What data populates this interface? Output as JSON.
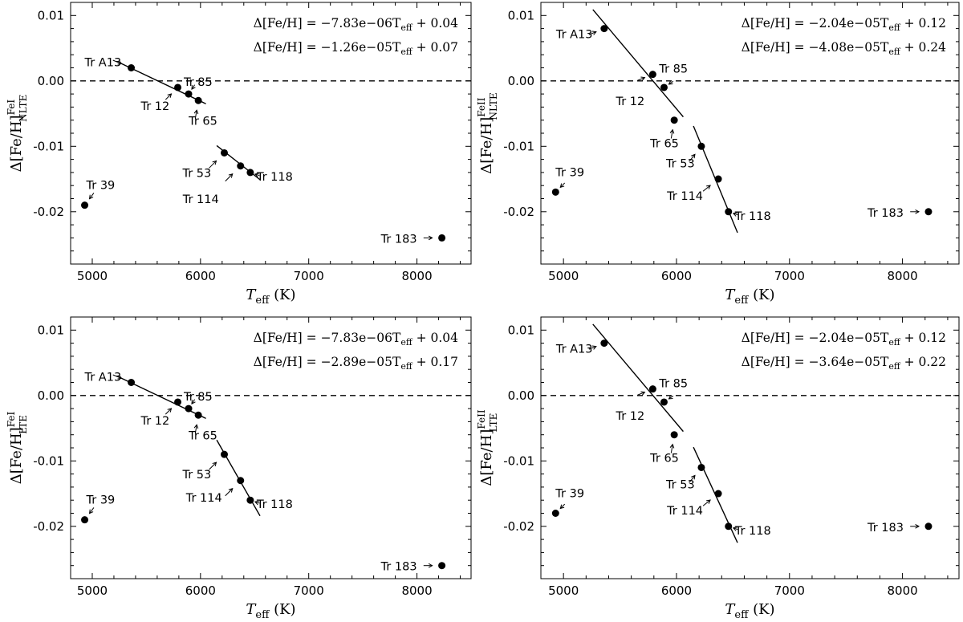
{
  "chart_data": [
    {
      "type": "scatter",
      "ylabel": "Δ[Fe/H] NLTE (Fe I)",
      "ylabel_main": "Δ[Fe/H]",
      "ylabel_sup": "FeI",
      "ylabel_sub": "NLTE",
      "xlabel_main": "T",
      "xlabel_sub": "eff",
      "xlabel_unit": "(K)",
      "xlim": [
        4800,
        8500
      ],
      "ylim": [
        -0.028,
        0.012
      ],
      "xticks": [
        5000,
        6000,
        7000,
        8000
      ],
      "yticks": [
        0.01,
        0.0,
        -0.01,
        -0.02
      ],
      "ytick_labels": [
        "0.01",
        "0.00",
        "-0.01",
        "-0.02"
      ],
      "equations": [
        "Δ[Fe/H] = −7.83e−06T_eff + 0.04",
        "Δ[Fe/H] = −1.26e−05T_eff + 0.07"
      ],
      "points": [
        {
          "label": "Tr A13",
          "x": 5360,
          "y": 0.002
        },
        {
          "label": "Tr 12",
          "x": 5790,
          "y": -0.001
        },
        {
          "label": "Tr 85",
          "x": 5890,
          "y": -0.002
        },
        {
          "label": "Tr 65",
          "x": 5980,
          "y": -0.003
        },
        {
          "label": "Tr 53",
          "x": 6220,
          "y": -0.011
        },
        {
          "label": "Tr 114",
          "x": 6370,
          "y": -0.013
        },
        {
          "label": "Tr 118",
          "x": 6460,
          "y": -0.014
        },
        {
          "label": "Tr 39",
          "x": 4930,
          "y": -0.019
        },
        {
          "label": "Tr 183",
          "x": 8230,
          "y": -0.024
        }
      ],
      "fits": [
        {
          "x": [
            5250,
            6050
          ],
          "y": [
            0.0028,
            -0.0035
          ]
        },
        {
          "x": [
            6150,
            6550
          ],
          "y": [
            -0.0099,
            -0.0151
          ]
        }
      ]
    },
    {
      "type": "scatter",
      "ylabel": "Δ[Fe/H] NLTE (Fe II)",
      "ylabel_main": "Δ[Fe/H]",
      "ylabel_sup": "FeII",
      "ylabel_sub": "NLTE",
      "xlabel_main": "T",
      "xlabel_sub": "eff",
      "xlabel_unit": "(K)",
      "xlim": [
        4800,
        8500
      ],
      "ylim": [
        -0.028,
        0.012
      ],
      "xticks": [
        5000,
        6000,
        7000,
        8000
      ],
      "yticks": [
        0.01,
        0.0,
        -0.01,
        -0.02
      ],
      "ytick_labels": [
        "0.01",
        "0.00",
        "-0.01",
        "-0.02"
      ],
      "equations": [
        "Δ[Fe/H] = −2.04e−05T_eff + 0.12",
        "Δ[Fe/H] = −4.08e−05T_eff + 0.24"
      ],
      "points": [
        {
          "label": "Tr A13",
          "x": 5360,
          "y": 0.008
        },
        {
          "label": "Tr 85",
          "x": 5790,
          "y": 0.001
        },
        {
          "label": "Tr 12",
          "x": 5890,
          "y": -0.001
        },
        {
          "label": "Tr 65",
          "x": 5980,
          "y": -0.006
        },
        {
          "label": "Tr 53",
          "x": 6220,
          "y": -0.01
        },
        {
          "label": "Tr 114",
          "x": 6370,
          "y": -0.015
        },
        {
          "label": "Tr 118",
          "x": 6460,
          "y": -0.02
        },
        {
          "label": "Tr 39",
          "x": 4930,
          "y": -0.017
        },
        {
          "label": "Tr 183",
          "x": 8230,
          "y": -0.02
        }
      ],
      "fits": [
        {
          "x": [
            5260,
            6060
          ],
          "y": [
            0.0109,
            -0.0055
          ]
        },
        {
          "x": [
            6150,
            6540
          ],
          "y": [
            -0.0069,
            -0.0232
          ]
        }
      ]
    },
    {
      "type": "scatter",
      "ylabel": "Δ[Fe/H] LTE (Fe I)",
      "ylabel_main": "Δ[Fe/H]",
      "ylabel_sup": "FeI",
      "ylabel_sub": "LTE",
      "xlabel_main": "T",
      "xlabel_sub": "eff",
      "xlabel_unit": "(K)",
      "xlim": [
        4800,
        8500
      ],
      "ylim": [
        -0.028,
        0.012
      ],
      "xticks": [
        5000,
        6000,
        7000,
        8000
      ],
      "yticks": [
        0.01,
        0.0,
        -0.01,
        -0.02
      ],
      "ytick_labels": [
        "0.01",
        "0.00",
        "-0.01",
        "-0.02"
      ],
      "equations": [
        "Δ[Fe/H] = −7.83e−06T_eff + 0.04",
        "Δ[Fe/H] = −2.89e−05T_eff + 0.17"
      ],
      "points": [
        {
          "label": "Tr A13",
          "x": 5360,
          "y": 0.002
        },
        {
          "label": "Tr 12",
          "x": 5790,
          "y": -0.001
        },
        {
          "label": "Tr 85",
          "x": 5890,
          "y": -0.002
        },
        {
          "label": "Tr 65",
          "x": 5980,
          "y": -0.003
        },
        {
          "label": "Tr 53",
          "x": 6220,
          "y": -0.009
        },
        {
          "label": "Tr 114",
          "x": 6370,
          "y": -0.013
        },
        {
          "label": "Tr 118",
          "x": 6460,
          "y": -0.016
        },
        {
          "label": "Tr 39",
          "x": 4930,
          "y": -0.019
        },
        {
          "label": "Tr 183",
          "x": 8230,
          "y": -0.026
        }
      ],
      "fits": [
        {
          "x": [
            5250,
            6050
          ],
          "y": [
            0.0028,
            -0.0035
          ]
        },
        {
          "x": [
            6150,
            6550
          ],
          "y": [
            -0.0068,
            -0.0184
          ]
        }
      ]
    },
    {
      "type": "scatter",
      "ylabel": "Δ[Fe/H] LTE (Fe II)",
      "ylabel_main": "Δ[Fe/H]",
      "ylabel_sup": "FeII",
      "ylabel_sub": "LTE",
      "xlabel_main": "T",
      "xlabel_sub": "eff",
      "xlabel_unit": "(K)",
      "xlim": [
        4800,
        8500
      ],
      "ylim": [
        -0.028,
        0.012
      ],
      "xticks": [
        5000,
        6000,
        7000,
        8000
      ],
      "yticks": [
        0.01,
        0.0,
        -0.01,
        -0.02
      ],
      "ytick_labels": [
        "0.01",
        "0.00",
        "-0.01",
        "-0.02"
      ],
      "equations": [
        "Δ[Fe/H] = −2.04e−05T_eff + 0.12",
        "Δ[Fe/H] = −3.64e−05T_eff + 0.22"
      ],
      "points": [
        {
          "label": "Tr A13",
          "x": 5360,
          "y": 0.008
        },
        {
          "label": "Tr 85",
          "x": 5790,
          "y": 0.001
        },
        {
          "label": "Tr 12",
          "x": 5890,
          "y": -0.001
        },
        {
          "label": "Tr 65",
          "x": 5980,
          "y": -0.006
        },
        {
          "label": "Tr 53",
          "x": 6220,
          "y": -0.011
        },
        {
          "label": "Tr 114",
          "x": 6370,
          "y": -0.015
        },
        {
          "label": "Tr 118",
          "x": 6460,
          "y": -0.02
        },
        {
          "label": "Tr 39",
          "x": 4930,
          "y": -0.018
        },
        {
          "label": "Tr 183",
          "x": 8230,
          "y": -0.02
        }
      ],
      "fits": [
        {
          "x": [
            5260,
            6060
          ],
          "y": [
            0.0109,
            -0.0055
          ]
        },
        {
          "x": [
            6150,
            6540
          ],
          "y": [
            -0.0079,
            -0.0225
          ]
        }
      ]
    }
  ]
}
